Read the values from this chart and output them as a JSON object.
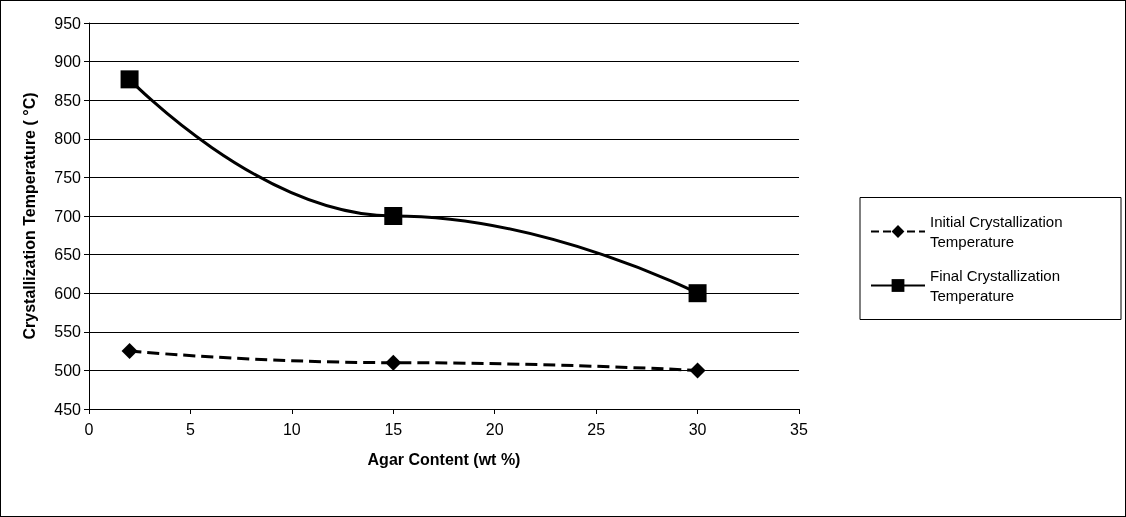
{
  "chart_data": {
    "type": "line",
    "xlabel": "Agar Content (wt %)",
    "ylabel": "Crystallization Temperature ( °C)",
    "x": [
      2,
      15,
      30
    ],
    "series": [
      {
        "name": "Initial Crystallization Temperature",
        "color": "#000000",
        "values": [
          525,
          510,
          500
        ],
        "marker": "diamond",
        "line_style": "dashed"
      },
      {
        "name": "Final Crystallization Temperature",
        "color": "#000000",
        "values": [
          877,
          700,
          600
        ],
        "marker": "square",
        "line_style": "solid"
      }
    ],
    "xlim": [
      0,
      35
    ],
    "xticks": [
      0,
      5,
      10,
      15,
      20,
      25,
      30,
      35
    ],
    "ylim": [
      450,
      950
    ],
    "yticks": [
      450,
      500,
      550,
      600,
      650,
      700,
      750,
      800,
      850,
      900,
      950
    ],
    "grid": "y",
    "legend": "right"
  }
}
